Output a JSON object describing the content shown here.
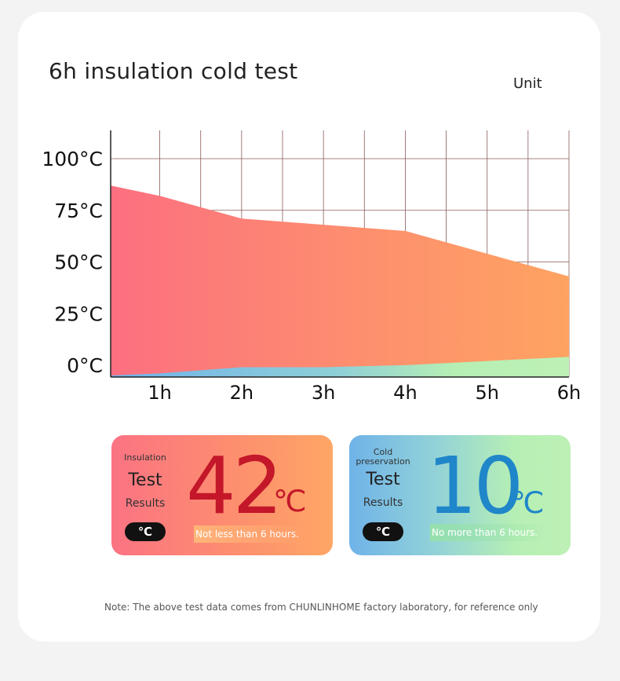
{
  "page": {
    "title": "6h insulation cold test",
    "unit_label": "Unit",
    "note": "Note: The above test data comes from CHUNLINHOME factory laboratory, for reference only"
  },
  "chart_data": {
    "type": "area",
    "title": "6h insulation cold test",
    "x": [
      0.4,
      1,
      2,
      3,
      4,
      5,
      6
    ],
    "x_tick_labels": [
      "1h",
      "2h",
      "3h",
      "4h",
      "5h",
      "6h"
    ],
    "y_tick_labels": [
      "0°C",
      "25°C",
      "50°C",
      "75°C",
      "100°C"
    ],
    "ylim": [
      0,
      100
    ],
    "grid": true,
    "series": [
      {
        "values": [
          87,
          82,
          71,
          68,
          65,
          54,
          43
        ],
        "color": "#fb7383"
      },
      {
        "values": [
          0,
          1,
          4,
          4,
          5,
          7,
          9
        ],
        "color": "#7ab8e8"
      }
    ]
  },
  "panels": {
    "insulation": {
      "heading": "Insulation",
      "test": "Test",
      "results": "Results",
      "unit_pill": "℃",
      "value": "42",
      "degree": "℃",
      "note": "Not less than 6 hours."
    },
    "cold": {
      "heading": "Cold preservation",
      "test": "Test",
      "results": "Results",
      "unit_pill": "℃",
      "value": "10",
      "degree": "℃",
      "note": "No more than 6 hours."
    }
  }
}
